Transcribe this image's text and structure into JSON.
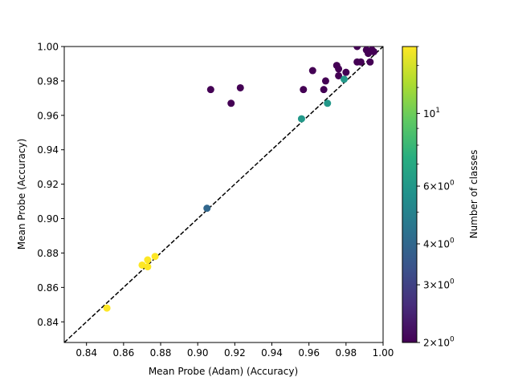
{
  "chart_data": {
    "type": "scatter",
    "title": "",
    "xlabel": "Mean Probe (Adam) (Accuracy)",
    "ylabel": "Mean Probe (Accuracy)",
    "xlim": [
      0.828,
      1.0
    ],
    "ylim": [
      0.828,
      1.0
    ],
    "xticks": [
      0.84,
      0.86,
      0.88,
      0.9,
      0.92,
      0.94,
      0.96,
      0.98,
      1.0
    ],
    "xtick_labels": [
      "0.84",
      "0.86",
      "0.88",
      "0.90",
      "0.92",
      "0.94",
      "0.96",
      "0.98",
      "1.00"
    ],
    "yticks": [
      0.84,
      0.86,
      0.88,
      0.9,
      0.92,
      0.94,
      0.96,
      0.98,
      1.0
    ],
    "ytick_labels": [
      "0.84",
      "0.86",
      "0.88",
      "0.90",
      "0.92",
      "0.94",
      "0.96",
      "0.98",
      "1.00"
    ],
    "reference_line": {
      "style": "dashed",
      "color": "#000000",
      "description": "y = x"
    },
    "colormap": "viridis",
    "color_scale": "log",
    "colorbar": {
      "label": "Number of classes",
      "range": [
        2,
        16
      ],
      "ticks": [
        {
          "value": 2,
          "base": "2",
          "exp": "0"
        },
        {
          "value": 3,
          "base": "3",
          "exp": "0"
        },
        {
          "value": 4,
          "base": "4",
          "exp": "0"
        },
        {
          "value": 6,
          "base": "6",
          "exp": "0"
        },
        {
          "value": 10,
          "base": "10",
          "exp": "1"
        }
      ],
      "tick_sep": "×"
    },
    "points": [
      {
        "x": 0.851,
        "y": 0.848,
        "c": 16
      },
      {
        "x": 0.87,
        "y": 0.873,
        "c": 16
      },
      {
        "x": 0.873,
        "y": 0.872,
        "c": 16
      },
      {
        "x": 0.873,
        "y": 0.876,
        "c": 16
      },
      {
        "x": 0.877,
        "y": 0.878,
        "c": 16
      },
      {
        "x": 0.905,
        "y": 0.906,
        "c": 4
      },
      {
        "x": 0.907,
        "y": 0.975,
        "c": 2
      },
      {
        "x": 0.918,
        "y": 0.967,
        "c": 2
      },
      {
        "x": 0.923,
        "y": 0.976,
        "c": 2
      },
      {
        "x": 0.956,
        "y": 0.958,
        "c": 6
      },
      {
        "x": 0.957,
        "y": 0.975,
        "c": 2
      },
      {
        "x": 0.962,
        "y": 0.986,
        "c": 2
      },
      {
        "x": 0.968,
        "y": 0.975,
        "c": 2
      },
      {
        "x": 0.969,
        "y": 0.98,
        "c": 2
      },
      {
        "x": 0.97,
        "y": 0.967,
        "c": 6
      },
      {
        "x": 0.975,
        "y": 0.989,
        "c": 2
      },
      {
        "x": 0.976,
        "y": 0.987,
        "c": 2
      },
      {
        "x": 0.976,
        "y": 0.983,
        "c": 2
      },
      {
        "x": 0.979,
        "y": 0.981,
        "c": 6
      },
      {
        "x": 0.98,
        "y": 0.985,
        "c": 2
      },
      {
        "x": 0.986,
        "y": 0.991,
        "c": 2
      },
      {
        "x": 0.986,
        "y": 1.0,
        "c": 2
      },
      {
        "x": 0.988,
        "y": 0.991,
        "c": 2
      },
      {
        "x": 0.991,
        "y": 0.998,
        "c": 2
      },
      {
        "x": 0.992,
        "y": 0.996,
        "c": 2
      },
      {
        "x": 0.993,
        "y": 0.991,
        "c": 2
      },
      {
        "x": 0.994,
        "y": 0.998,
        "c": 2
      },
      {
        "x": 0.995,
        "y": 0.997,
        "c": 2
      }
    ]
  }
}
